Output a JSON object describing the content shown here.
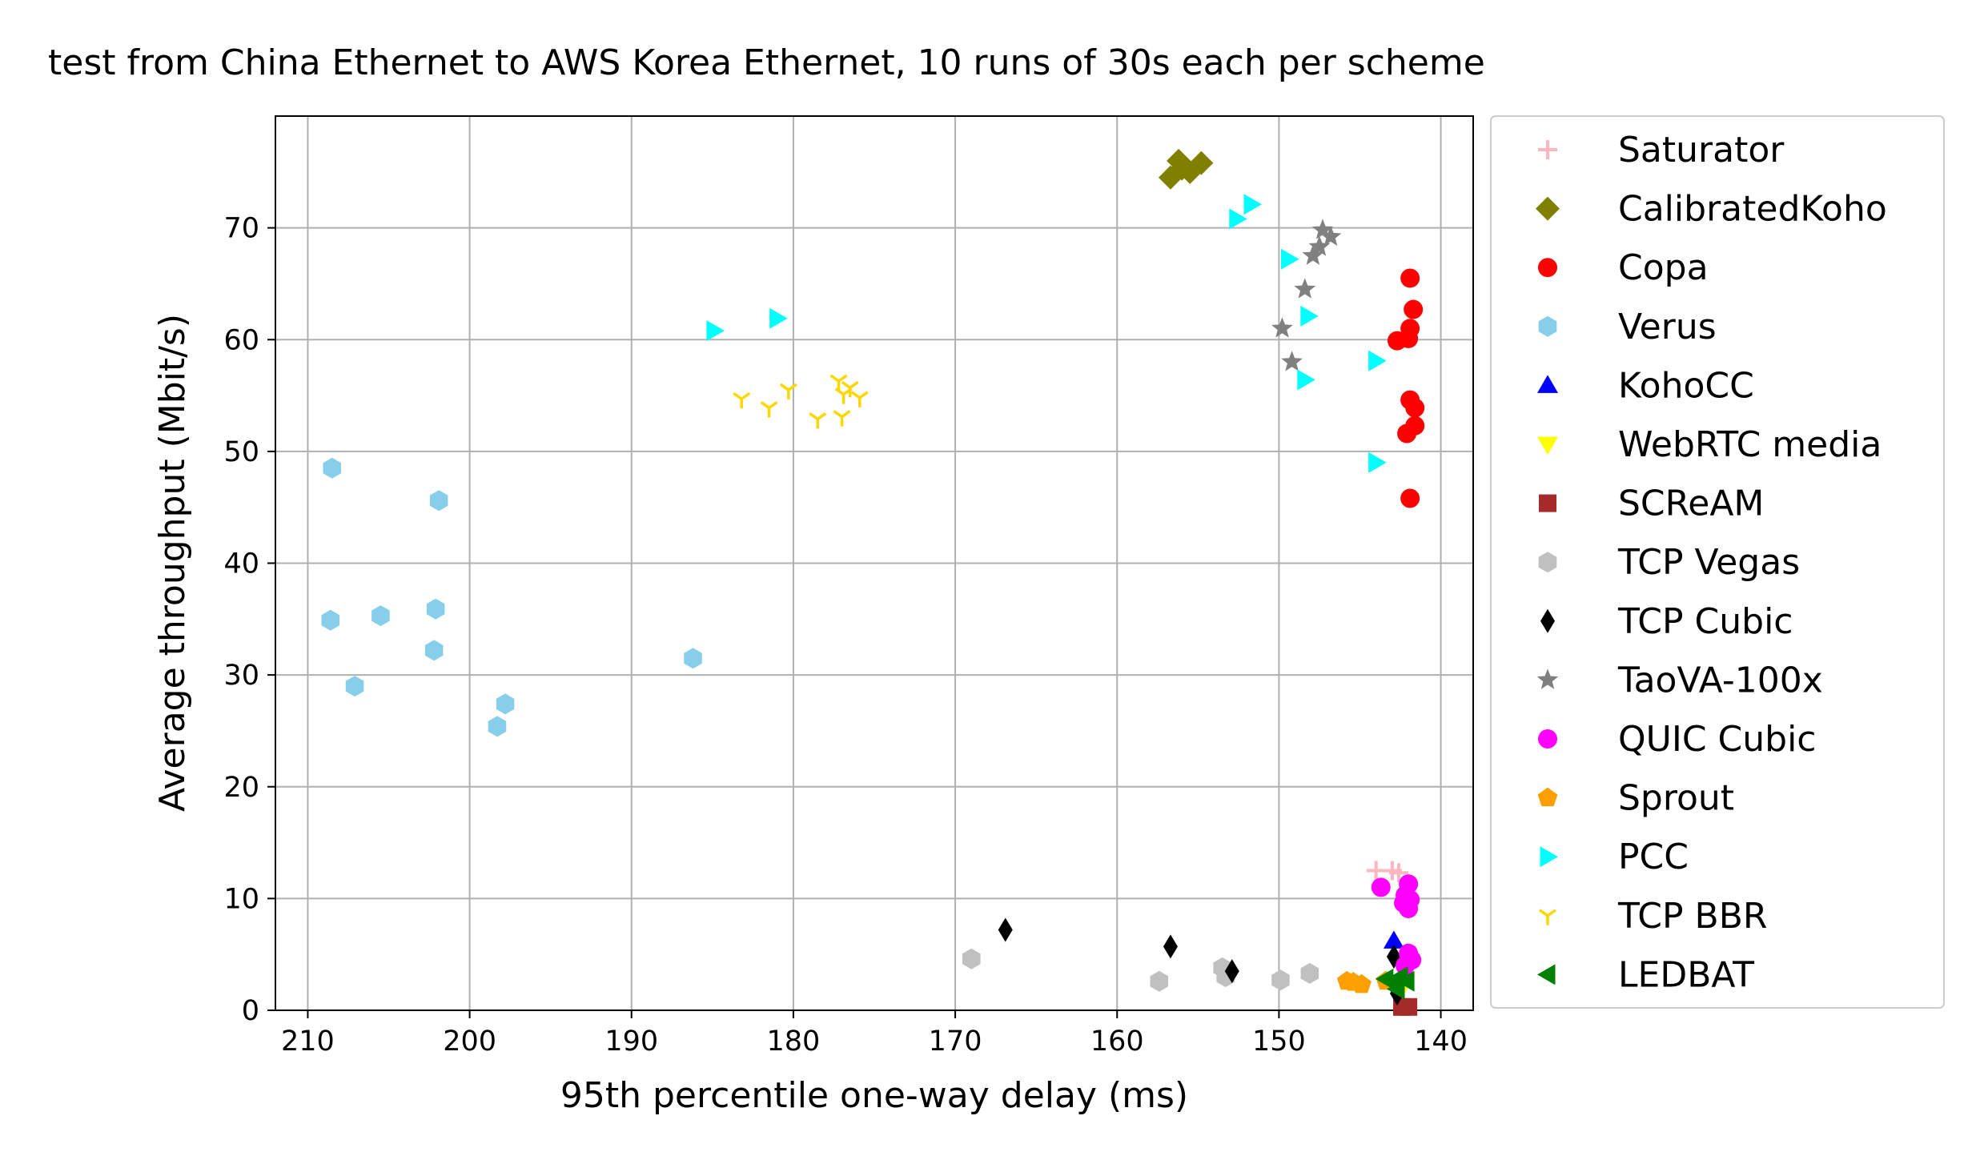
{
  "chart_data": {
    "type": "scatter",
    "title": "test from China Ethernet to AWS Korea Ethernet, 10 runs of 30s each per scheme",
    "xlabel": "95th percentile one-way delay (ms)",
    "ylabel": "Average throughput (Mbit/s)",
    "xlim": [
      212,
      138
    ],
    "ylim": [
      0,
      80
    ],
    "x_inverted": true,
    "grid": true,
    "legend_position": "outside-right",
    "xticks": [
      210,
      200,
      190,
      180,
      170,
      160,
      150,
      140
    ],
    "yticks": [
      0,
      10,
      20,
      30,
      40,
      50,
      60,
      70
    ],
    "series": [
      {
        "name": "Saturator",
        "marker": "plus",
        "color": "#ffb6c1",
        "points": [
          [
            144.0,
            12.5
          ],
          [
            143.0,
            12.5
          ],
          [
            142.6,
            12.3
          ]
        ]
      },
      {
        "name": "CalibratedKoho",
        "marker": "diamond",
        "color": "#808000",
        "points": [
          [
            156.7,
            74.5
          ],
          [
            156.2,
            76.0
          ],
          [
            155.5,
            75.0
          ],
          [
            154.8,
            75.8
          ],
          [
            156.0,
            75.3
          ]
        ]
      },
      {
        "name": "Copa",
        "marker": "circle",
        "color": "#ff0000",
        "points": [
          [
            141.9,
            65.5
          ],
          [
            141.7,
            62.7
          ],
          [
            141.9,
            61.0
          ],
          [
            142.0,
            60.1
          ],
          [
            142.7,
            59.9
          ],
          [
            141.9,
            54.6
          ],
          [
            141.6,
            53.9
          ],
          [
            141.6,
            52.3
          ],
          [
            142.1,
            51.6
          ],
          [
            141.9,
            45.8
          ]
        ]
      },
      {
        "name": "Verus",
        "marker": "hexagon",
        "color": "#87ceeb",
        "points": [
          [
            208.5,
            48.5
          ],
          [
            201.9,
            45.6
          ],
          [
            208.6,
            34.9
          ],
          [
            205.5,
            35.3
          ],
          [
            202.1,
            35.9
          ],
          [
            207.1,
            29.0
          ],
          [
            202.2,
            32.2
          ],
          [
            197.8,
            27.4
          ],
          [
            198.3,
            25.4
          ],
          [
            186.2,
            31.5
          ]
        ]
      },
      {
        "name": "KohoCC",
        "marker": "triangle-up",
        "color": "#0000ff",
        "points": [
          [
            142.9,
            6.2
          ]
        ]
      },
      {
        "name": "WebRTC media",
        "marker": "triangle-down",
        "color": "#ffff00",
        "points": [
          [
            142.2,
            2.5
          ]
        ]
      },
      {
        "name": "SCReAM",
        "marker": "square",
        "color": "#a52a2a",
        "points": [
          [
            142.4,
            0.3
          ],
          [
            142.0,
            0.3
          ]
        ]
      },
      {
        "name": "TCP Vegas",
        "marker": "hexagon",
        "color": "#c0c0c0",
        "points": [
          [
            169.0,
            4.6
          ],
          [
            157.4,
            2.6
          ],
          [
            153.5,
            3.8
          ],
          [
            153.3,
            3.0
          ],
          [
            149.9,
            2.7
          ],
          [
            148.1,
            3.3
          ]
        ]
      },
      {
        "name": "TCP Cubic",
        "marker": "thin-diamond",
        "color": "#000000",
        "points": [
          [
            166.9,
            7.2
          ],
          [
            156.7,
            5.7
          ],
          [
            152.9,
            3.5
          ],
          [
            142.9,
            4.8
          ],
          [
            142.7,
            1.5
          ]
        ]
      },
      {
        "name": "TaoVA-100x",
        "marker": "star",
        "color": "#808080",
        "points": [
          [
            147.3,
            69.8
          ],
          [
            146.8,
            69.2
          ],
          [
            147.5,
            68.3
          ],
          [
            147.9,
            67.5
          ],
          [
            148.4,
            64.5
          ],
          [
            149.8,
            61.0
          ],
          [
            149.2,
            58.0
          ]
        ]
      },
      {
        "name": "QUIC Cubic",
        "marker": "circle",
        "color": "#ff00ff",
        "points": [
          [
            143.7,
            11.0
          ],
          [
            142.0,
            11.3
          ],
          [
            142.2,
            10.3
          ],
          [
            141.9,
            9.9
          ],
          [
            142.3,
            9.6
          ],
          [
            142.0,
            9.1
          ],
          [
            142.0,
            5.1
          ],
          [
            141.8,
            4.5
          ],
          [
            142.2,
            4.0
          ]
        ]
      },
      {
        "name": "Sprout",
        "marker": "pentagon",
        "color": "#ff9f00",
        "points": [
          [
            145.8,
            2.6
          ],
          [
            145.4,
            2.5
          ],
          [
            144.9,
            2.3
          ],
          [
            143.4,
            2.6
          ]
        ]
      },
      {
        "name": "PCC",
        "marker": "triangle-right",
        "color": "#00ffff",
        "points": [
          [
            151.7,
            72.1
          ],
          [
            152.6,
            70.8
          ],
          [
            149.4,
            67.2
          ],
          [
            148.2,
            62.1
          ],
          [
            184.9,
            60.8
          ],
          [
            181.0,
            61.9
          ],
          [
            144.0,
            58.1
          ],
          [
            148.4,
            56.4
          ],
          [
            144.0,
            49.0
          ]
        ]
      },
      {
        "name": "TCP BBR",
        "marker": "tri-down",
        "color": "#ffd700",
        "points": [
          [
            183.2,
            54.7
          ],
          [
            181.5,
            53.9
          ],
          [
            180.3,
            55.5
          ],
          [
            178.5,
            52.9
          ],
          [
            177.2,
            56.3
          ],
          [
            176.5,
            55.7
          ],
          [
            176.9,
            55.1
          ],
          [
            175.9,
            54.8
          ],
          [
            177.0,
            53.1
          ]
        ]
      },
      {
        "name": "LEDBAT",
        "marker": "triangle-left",
        "color": "#008000",
        "points": [
          [
            143.4,
            2.8
          ],
          [
            142.9,
            2.4
          ],
          [
            142.5,
            3.0
          ],
          [
            142.1,
            2.6
          ],
          [
            142.7,
            1.9
          ]
        ]
      }
    ]
  }
}
